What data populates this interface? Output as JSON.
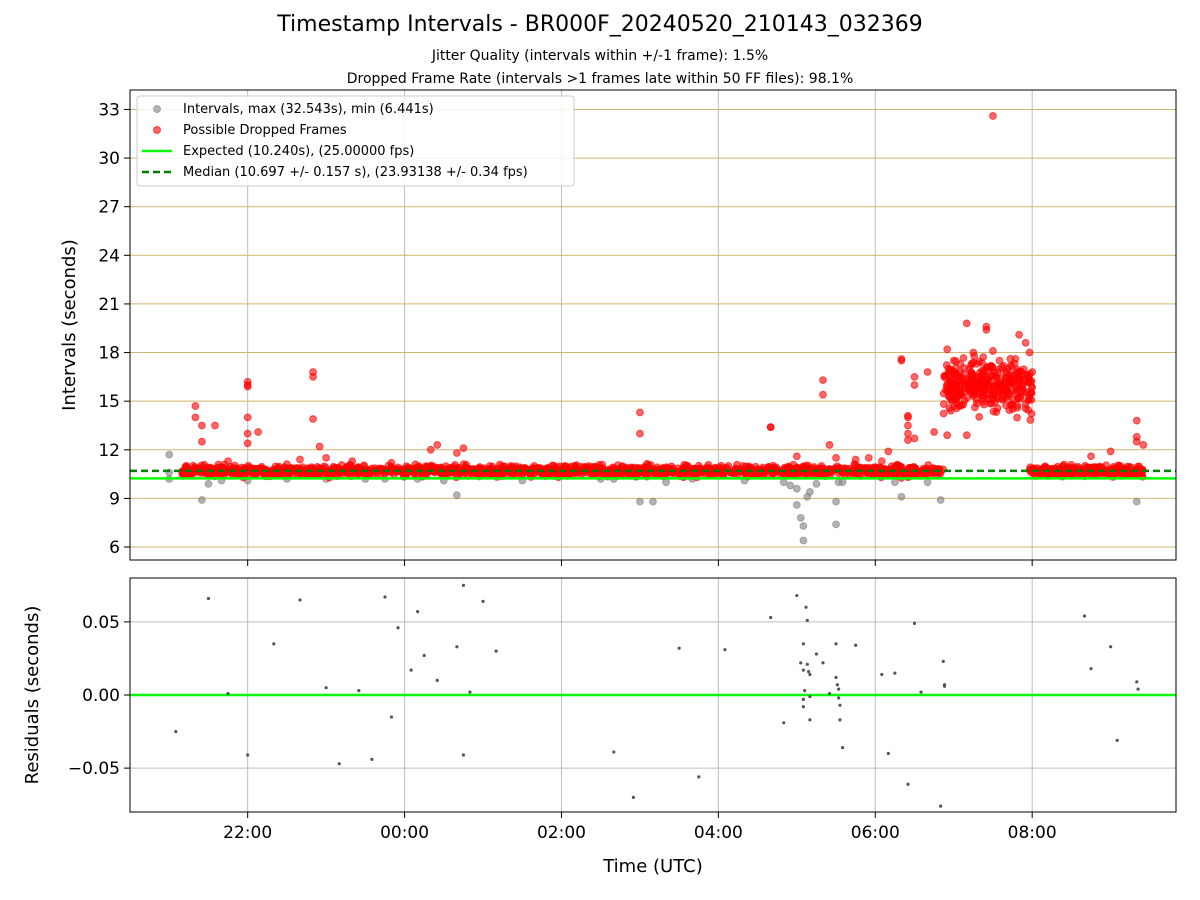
{
  "title": "Timestamp Intervals - BR000F_20240520_210143_032369",
  "subtitle_jitter": "Jitter Quality (intervals within +/-1 frame): 1.5%",
  "subtitle_dropped": "Dropped Frame Rate (intervals >1 frames late within 50 FF files): 98.1%",
  "colors": {
    "intervals": "#808080",
    "dropped": "#ff0000",
    "expected": "#00ff00",
    "median": "#007f00",
    "top_grid": "#d2b56e",
    "grid": "#bdbdbd"
  },
  "chart_data": [
    {
      "type": "scatter",
      "ylabel": "Intervals (seconds)",
      "xlim": [
        "20:30",
        "09:50"
      ],
      "ylim": [
        5.2,
        34.2
      ],
      "yticks": [
        "6",
        "9",
        "12",
        "15",
        "18",
        "21",
        "24",
        "27",
        "30",
        "33"
      ],
      "grid": "on",
      "legend_position": "top-left",
      "legend": [
        "Intervals, max (32.543s), min (6.441s)",
        "Possible Dropped Frames",
        "Expected (10.240s), (25.00000 fps)",
        "Median (10.697 +/- 0.157 s), (23.93138 +/- 0.34 fps)"
      ],
      "expected_interval": 10.24,
      "median_interval": 10.697,
      "series": [
        {
          "name": "Intervals, max (32.543s), min (6.441s)",
          "x": [
            "21:00",
            "21:00",
            "21:00",
            "21:10",
            "21:25",
            "21:30",
            "21:40",
            "22:00",
            "22:30",
            "23:00",
            "23:30",
            "23:45",
            "00:10",
            "00:30",
            "00:40",
            "01:30",
            "02:30",
            "02:40",
            "03:00",
            "03:10",
            "03:20",
            "03:40",
            "04:20",
            "04:50",
            "04:55",
            "05:00",
            "05:00",
            "05:03",
            "05:05",
            "05:05",
            "05:08",
            "05:10",
            "05:15",
            "05:30",
            "05:30",
            "05:32",
            "05:35",
            "06:15",
            "06:20",
            "06:40",
            "06:50",
            "09:20"
          ],
          "y": [
            11.7,
            10.6,
            10.2,
            10.5,
            8.9,
            9.9,
            10.1,
            10.1,
            10.2,
            10.2,
            10.2,
            10.2,
            10.2,
            10.1,
            9.2,
            10.1,
            10.2,
            10.2,
            8.8,
            8.8,
            10.0,
            10.2,
            10.1,
            10.0,
            9.8,
            9.6,
            8.6,
            7.8,
            6.4,
            7.3,
            9.1,
            9.4,
            9.9,
            8.8,
            7.4,
            10.0,
            10.0,
            10.0,
            9.1,
            10.0,
            8.9,
            8.8
          ]
        },
        {
          "name": "Possible Dropped Frames",
          "outliers": {
            "x": [
              "21:20",
              "21:20",
              "21:25",
              "21:25",
              "21:35",
              "21:45",
              "22:00",
              "22:00",
              "22:00",
              "22:00",
              "22:00",
              "22:00",
              "22:08",
              "22:40",
              "22:50",
              "22:50",
              "22:50",
              "22:55",
              "23:00",
              "23:20",
              "23:50",
              "00:20",
              "00:25",
              "00:40",
              "00:45",
              "03:00",
              "03:00",
              "04:40",
              "04:40",
              "05:00",
              "05:20",
              "05:20",
              "05:25",
              "05:30",
              "05:45",
              "05:55",
              "06:05",
              "06:10",
              "06:20",
              "06:20",
              "06:25",
              "06:25",
              "06:25",
              "06:25",
              "06:25",
              "06:30",
              "06:30",
              "06:30",
              "06:40",
              "06:45",
              "06:55",
              "06:55",
              "07:00",
              "07:10",
              "07:10",
              "07:15",
              "07:25",
              "07:25",
              "07:30",
              "07:30",
              "07:35",
              "07:40",
              "07:45",
              "07:50",
              "07:55",
              "07:58",
              "08:00",
              "08:45",
              "09:00",
              "09:20",
              "09:20",
              "09:20",
              "09:25"
            ],
            "y": [
              14.7,
              14.0,
              13.5,
              12.5,
              13.5,
              11.3,
              16.2,
              16.0,
              15.9,
              14.0,
              13.0,
              12.4,
              13.1,
              11.4,
              16.8,
              16.5,
              13.9,
              12.2,
              11.5,
              11.3,
              11.2,
              12.0,
              12.3,
              11.8,
              12.1,
              14.3,
              13.0,
              13.4,
              13.4,
              11.6,
              16.3,
              15.4,
              12.3,
              11.5,
              11.4,
              11.5,
              11.3,
              11.9,
              17.6,
              17.5,
              14.1,
              14.0,
              13.5,
              13.0,
              12.6,
              16.5,
              16.0,
              12.7,
              16.8,
              13.1,
              12.9,
              18.2,
              17.5,
              12.9,
              19.8,
              18.0,
              19.6,
              19.4,
              32.6,
              18.1,
              17.5,
              15.2,
              14.5,
              19.1,
              18.6,
              18.0,
              16.8,
              11.6,
              11.9,
              13.8,
              12.8,
              12.5,
              12.3
            ]
          }
        }
      ]
    },
    {
      "type": "scatter",
      "xlabel": "Time (UTC)",
      "ylabel": "Residuals (seconds)",
      "xlim": [
        "20:30",
        "09:50"
      ],
      "ylim": [
        -0.08,
        0.08
      ],
      "xticks": [
        "22:00",
        "00:00",
        "02:00",
        "04:00",
        "06:00",
        "08:00"
      ],
      "yticks": [
        "0.05",
        "0.00",
        "−0.05"
      ],
      "zero_line": 0.0,
      "grid": "on",
      "series": [
        {
          "name": "Residuals",
          "x": [
            "21:05",
            "21:30",
            "21:45",
            "22:00",
            "22:20",
            "22:40",
            "23:00",
            "23:10",
            "23:25",
            "23:35",
            "23:45",
            "23:50",
            "23:55",
            "00:05",
            "00:10",
            "00:15",
            "00:25",
            "00:40",
            "00:45",
            "00:45",
            "00:50",
            "01:00",
            "01:10",
            "02:40",
            "02:55",
            "03:30",
            "03:45",
            "04:05",
            "04:40",
            "04:50",
            "05:00",
            "05:03",
            "05:05",
            "05:05",
            "05:05",
            "05:05",
            "05:06",
            "05:07",
            "05:08",
            "05:08",
            "05:09",
            "05:10",
            "05:10",
            "05:10",
            "05:15",
            "05:20",
            "05:25",
            "05:30",
            "05:30",
            "05:31",
            "05:32",
            "05:32",
            "05:33",
            "05:33",
            "05:35",
            "05:45",
            "06:05",
            "06:10",
            "06:15",
            "06:25",
            "06:30",
            "06:35",
            "06:50",
            "06:52",
            "06:53",
            "06:53",
            "08:40",
            "08:45",
            "09:00",
            "09:05",
            "09:20",
            "09:21"
          ],
          "y": [
            -0.025,
            0.066,
            0.001,
            -0.041,
            0.035,
            0.065,
            0.005,
            -0.047,
            0.003,
            -0.044,
            0.067,
            -0.015,
            0.046,
            0.017,
            0.057,
            0.027,
            0.01,
            0.033,
            0.075,
            -0.041,
            0.002,
            0.064,
            0.03,
            -0.039,
            -0.07,
            0.032,
            -0.056,
            0.031,
            0.053,
            -0.019,
            0.068,
            0.022,
            0.017,
            0.035,
            -0.003,
            -0.008,
            0.003,
            0.06,
            0.051,
            0.021,
            0.016,
            0.014,
            -0.001,
            -0.017,
            0.028,
            0.022,
            0.001,
            0.035,
            0.012,
            0.007,
            0.004,
            -0.002,
            -0.007,
            -0.017,
            -0.036,
            0.034,
            0.014,
            -0.04,
            0.015,
            -0.061,
            0.049,
            0.002,
            -0.076,
            0.023,
            0.007,
            0.006,
            0.054,
            0.018,
            0.033,
            -0.031,
            0.009,
            0.004
          ]
        }
      ]
    }
  ]
}
